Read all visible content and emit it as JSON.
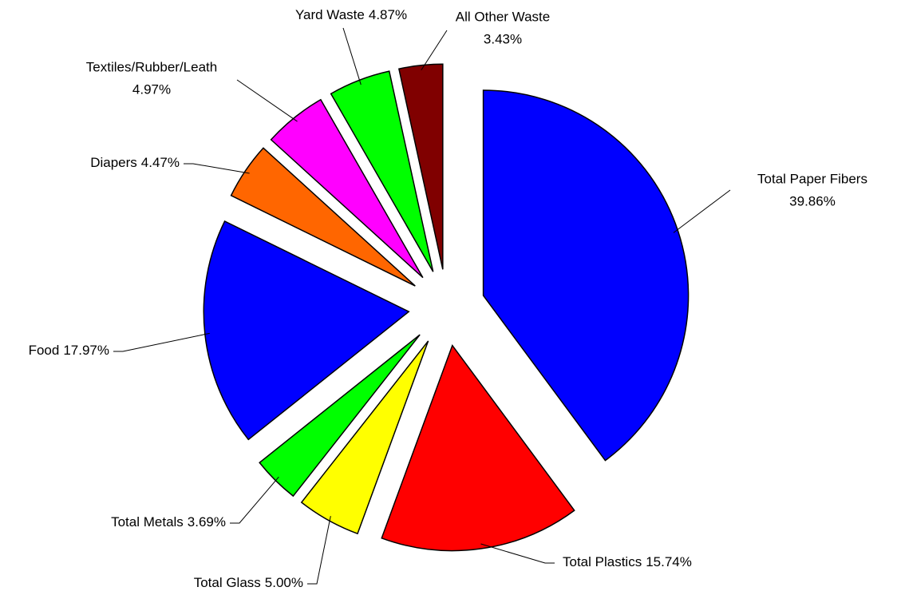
{
  "chart_data": {
    "type": "pie",
    "categories": [
      "Total Paper Fibers",
      "Total Plastics",
      "Total Glass",
      "Total Metals",
      "Food",
      "Diapers",
      "Textiles/Rubber/Leath",
      "Yard Waste",
      "All Other Waste"
    ],
    "values": [
      39.86,
      15.74,
      5.0,
      3.69,
      17.97,
      4.47,
      4.97,
      4.87,
      3.43
    ],
    "value_labels": [
      "39.86%",
      "15.74%",
      "5.00%",
      "3.69%",
      "17.97%",
      "4.47%",
      "4.97%",
      "4.87%",
      "3.43%"
    ],
    "colors": [
      "#0000ff",
      "#ff0000",
      "#ffff00",
      "#00ff00",
      "#0000ff",
      "#ff6600",
      "#ff00ff",
      "#00ff00",
      "#800000"
    ]
  }
}
